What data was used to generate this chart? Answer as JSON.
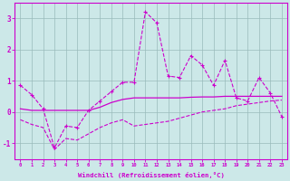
{
  "xlabel": "Windchill (Refroidissement éolien,°C)",
  "bg_color": "#cce8e8",
  "line_color": "#cc00cc",
  "grid_color": "#99bbbb",
  "xlim": [
    -0.5,
    23.5
  ],
  "ylim": [
    -1.5,
    3.5
  ],
  "xticks": [
    0,
    1,
    2,
    3,
    4,
    5,
    6,
    7,
    8,
    9,
    10,
    11,
    12,
    13,
    14,
    15,
    16,
    17,
    18,
    19,
    20,
    21,
    22,
    23
  ],
  "yticks": [
    -1,
    0,
    1,
    2,
    3
  ],
  "line1_x": [
    0,
    1,
    2,
    3,
    4,
    5,
    6,
    7,
    8,
    9,
    10,
    11,
    12,
    13,
    14,
    15,
    16,
    17,
    18,
    19,
    20,
    21,
    22,
    23
  ],
  "line1_y": [
    0.85,
    0.55,
    0.1,
    -1.15,
    -0.45,
    -0.5,
    0.05,
    0.35,
    0.65,
    0.95,
    0.95,
    3.2,
    2.85,
    1.15,
    1.1,
    1.8,
    1.5,
    0.85,
    1.65,
    0.45,
    0.35,
    1.1,
    0.6,
    -0.15
  ],
  "line2_x": [
    0,
    1,
    2,
    3,
    4,
    5,
    6,
    7,
    8,
    9,
    10,
    11,
    12,
    13,
    14,
    15,
    16,
    17,
    18,
    19,
    20,
    21,
    22,
    23
  ],
  "line2_y": [
    0.1,
    0.05,
    0.05,
    0.05,
    0.05,
    0.05,
    0.05,
    0.15,
    0.3,
    0.4,
    0.45,
    0.45,
    0.45,
    0.45,
    0.45,
    0.47,
    0.48,
    0.48,
    0.5,
    0.5,
    0.5,
    0.5,
    0.5,
    0.5
  ],
  "line3_x": [
    0,
    1,
    2,
    3,
    4,
    5,
    6,
    7,
    8,
    9,
    10,
    11,
    12,
    13,
    14,
    15,
    16,
    17,
    18,
    19,
    20,
    21,
    22,
    23
  ],
  "line3_y": [
    -0.25,
    -0.4,
    -0.5,
    -1.2,
    -0.85,
    -0.9,
    -0.7,
    -0.5,
    -0.35,
    -0.25,
    -0.45,
    -0.4,
    -0.35,
    -0.3,
    -0.2,
    -0.1,
    0.0,
    0.05,
    0.1,
    0.2,
    0.25,
    0.3,
    0.35,
    0.38
  ]
}
